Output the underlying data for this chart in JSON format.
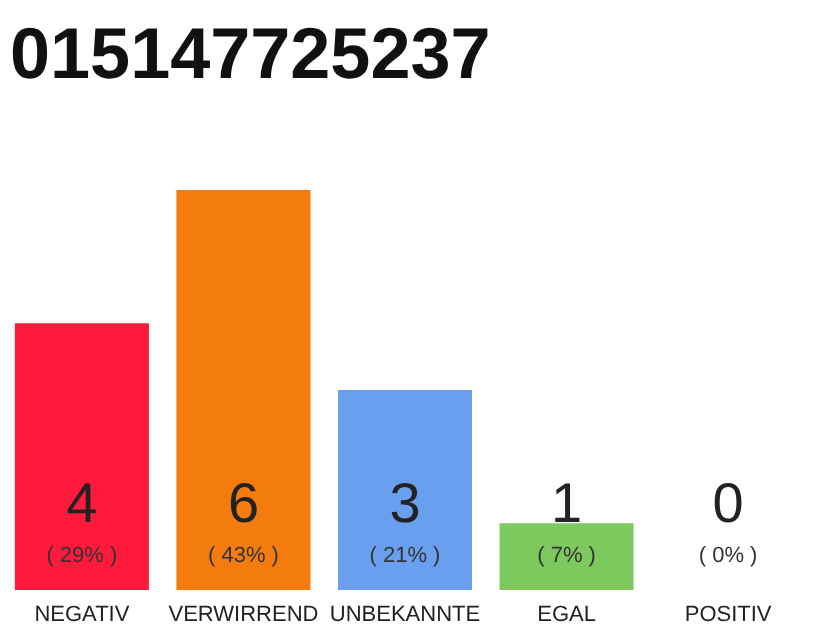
{
  "chart_data": {
    "type": "bar",
    "title": "015147725237",
    "categories": [
      "NEGATIV",
      "VERWIRREND",
      "UNBEKANNTE",
      "EGAL",
      "POSITIV"
    ],
    "values": [
      4,
      6,
      3,
      1,
      0
    ],
    "colors": [
      "#ff1a3c",
      "#f47c0f",
      "#6a9ff0",
      "#7dc95e",
      "#cccccc"
    ],
    "ylim": [
      0,
      6
    ],
    "tick_labels": "x",
    "grid": false,
    "data_labels": true,
    "annotations": [
      "( 29% )",
      "( 43% )",
      "( 21% )",
      "( 7% )",
      "( 0% )"
    ]
  }
}
